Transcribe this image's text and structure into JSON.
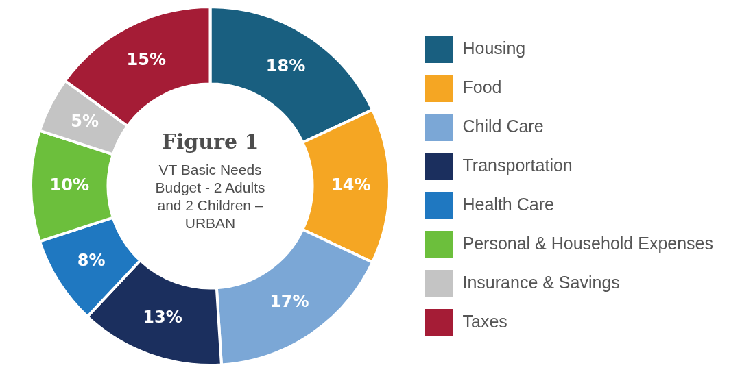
{
  "chart_data": {
    "type": "donut",
    "title": "Figure 1",
    "subtitle": "VT Basic Needs Budget - 2 Adults and 2 Children – URBAN",
    "categories": [
      "Housing",
      "Food",
      "Child Care",
      "Transportation",
      "Health Care",
      "Personal & Household Expenses",
      "Insurance & Savings",
      "Taxes"
    ],
    "values": [
      18,
      14,
      17,
      13,
      8,
      10,
      5,
      15
    ],
    "colors": [
      "#195f80",
      "#f5a623",
      "#7ba7d6",
      "#1b2f5e",
      "#1f78c1",
      "#6cbf3c",
      "#c4c4c4",
      "#a51c36"
    ],
    "value_labels": [
      "18%",
      "14%",
      "17%",
      "13%",
      "8%",
      "10%",
      "5%",
      "15%"
    ],
    "legend": "right"
  }
}
